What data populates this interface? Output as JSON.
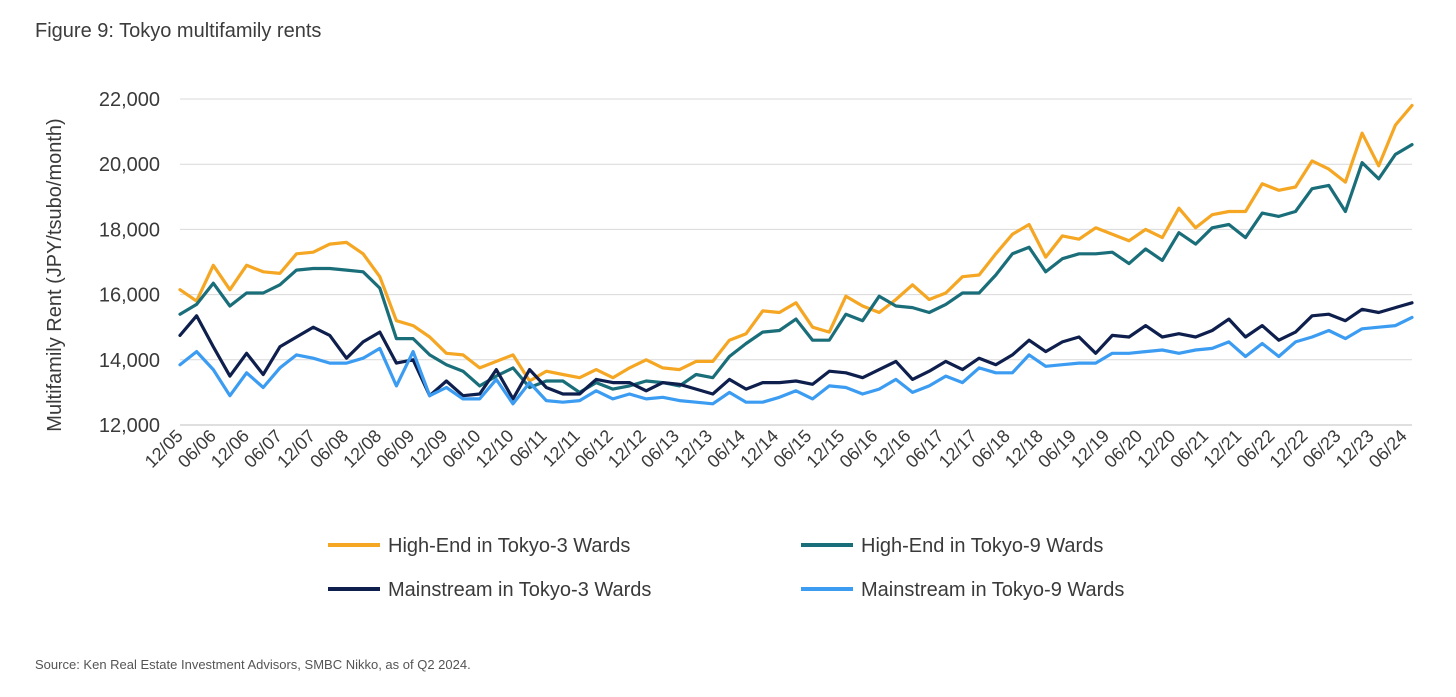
{
  "figure_title": "Figure 9: Tokyo multifamily rents",
  "source_note": "Source: Ken Real Estate Investment Advisors, SMBC Nikko, as of Q2 2024.",
  "chart_data": {
    "type": "line",
    "title": "Figure 9: Tokyo multifamily rents",
    "xlabel": "",
    "ylabel": "Multifamily Rent (JPY/tsubo/month)",
    "ylim": [
      12000,
      22000
    ],
    "yticks": [
      12000,
      14000,
      16000,
      18000,
      20000,
      22000
    ],
    "ytick_labels": [
      "12,000",
      "14,000",
      "16,000",
      "18,000",
      "20,000",
      "22,000"
    ],
    "grid": "horizontal",
    "legend_position": "bottom",
    "x_tick_labels": [
      "12/05",
      "06/06",
      "12/06",
      "06/07",
      "12/07",
      "06/08",
      "12/08",
      "06/09",
      "12/09",
      "06/10",
      "12/10",
      "06/11",
      "12/11",
      "06/12",
      "12/12",
      "06/13",
      "12/13",
      "06/14",
      "12/14",
      "06/15",
      "12/15",
      "06/16",
      "12/16",
      "06/17",
      "12/17",
      "06/18",
      "12/18",
      "06/19",
      "12/19",
      "06/20",
      "12/20",
      "06/21",
      "12/21",
      "06/22",
      "12/22",
      "06/23",
      "12/23",
      "06/24"
    ],
    "series": [
      {
        "name": "High-End in Tokyo-3 Wards",
        "color": "#f5a623",
        "values": [
          16150,
          15800,
          16900,
          16150,
          16900,
          16700,
          16650,
          17250,
          17300,
          17550,
          17600,
          17250,
          16550,
          15200,
          15050,
          14700,
          14200,
          14150,
          13750,
          13950,
          14150,
          13350,
          13650,
          13550,
          13450,
          13700,
          13450,
          13750,
          14000,
          13750,
          13700,
          13950,
          13950,
          14600,
          14800,
          15500,
          15450,
          15750,
          15000,
          14850,
          15950,
          15650,
          15450,
          15850,
          16300,
          15850,
          16050,
          16550,
          16600,
          17250,
          17850,
          18150,
          17150,
          17800,
          17700,
          18050,
          17850,
          17650,
          18000,
          17750,
          18650,
          18050,
          18450,
          18550,
          18550,
          19400,
          19200,
          19300,
          20100,
          19850,
          19450,
          20950,
          19950,
          21200,
          21800
        ]
      },
      {
        "name": "High-End in Tokyo-9 Wards",
        "color": "#1a6e7a",
        "values": [
          15400,
          15700,
          16350,
          15650,
          16050,
          16050,
          16300,
          16750,
          16800,
          16800,
          16750,
          16700,
          16200,
          14650,
          14650,
          14150,
          13850,
          13650,
          13200,
          13500,
          13750,
          13150,
          13350,
          13350,
          13000,
          13300,
          13100,
          13200,
          13350,
          13300,
          13200,
          13550,
          13450,
          14100,
          14500,
          14850,
          14900,
          15250,
          14600,
          14600,
          15400,
          15200,
          15950,
          15650,
          15600,
          15450,
          15700,
          16050,
          16050,
          16600,
          17250,
          17450,
          16700,
          17100,
          17250,
          17250,
          17300,
          16950,
          17400,
          17050,
          17900,
          17550,
          18050,
          18150,
          17750,
          18500,
          18400,
          18550,
          19250,
          19350,
          18550,
          20050,
          19550,
          20300,
          20600
        ]
      },
      {
        "name": "Mainstream in Tokyo-3 Wards",
        "color": "#0e1f4d",
        "values": [
          14750,
          15350,
          14400,
          13500,
          14200,
          13550,
          14400,
          14700,
          15000,
          14750,
          14050,
          14550,
          14850,
          13900,
          14000,
          12900,
          13350,
          12900,
          12950,
          13700,
          12800,
          13700,
          13150,
          12950,
          12950,
          13400,
          13300,
          13300,
          13050,
          13300,
          13250,
          13100,
          12950,
          13400,
          13100,
          13300,
          13300,
          13350,
          13250,
          13650,
          13600,
          13450,
          13700,
          13950,
          13400,
          13650,
          13950,
          13700,
          14050,
          13850,
          14150,
          14600,
          14250,
          14550,
          14700,
          14200,
          14750,
          14700,
          15050,
          14700,
          14800,
          14700,
          14900,
          15250,
          14700,
          15050,
          14600,
          14850,
          15350,
          15400,
          15200,
          15550,
          15450,
          15600,
          15750
        ]
      },
      {
        "name": "Mainstream in Tokyo-9 Wards",
        "color": "#3b9cf2",
        "values": [
          13850,
          14250,
          13700,
          12900,
          13600,
          13150,
          13750,
          14150,
          14050,
          13900,
          13900,
          14050,
          14350,
          13200,
          14250,
          12900,
          13150,
          12800,
          12800,
          13400,
          12650,
          13300,
          12750,
          12700,
          12750,
          13050,
          12800,
          12950,
          12800,
          12850,
          12750,
          12700,
          12650,
          13000,
          12700,
          12700,
          12850,
          13050,
          12800,
          13200,
          13150,
          12950,
          13100,
          13400,
          13000,
          13200,
          13500,
          13300,
          13750,
          13600,
          13600,
          14150,
          13800,
          13850,
          13900,
          13900,
          14200,
          14200,
          14250,
          14300,
          14200,
          14300,
          14350,
          14550,
          14100,
          14500,
          14100,
          14550,
          14700,
          14900,
          14650,
          14950,
          15000,
          15050,
          15300
        ]
      }
    ]
  }
}
